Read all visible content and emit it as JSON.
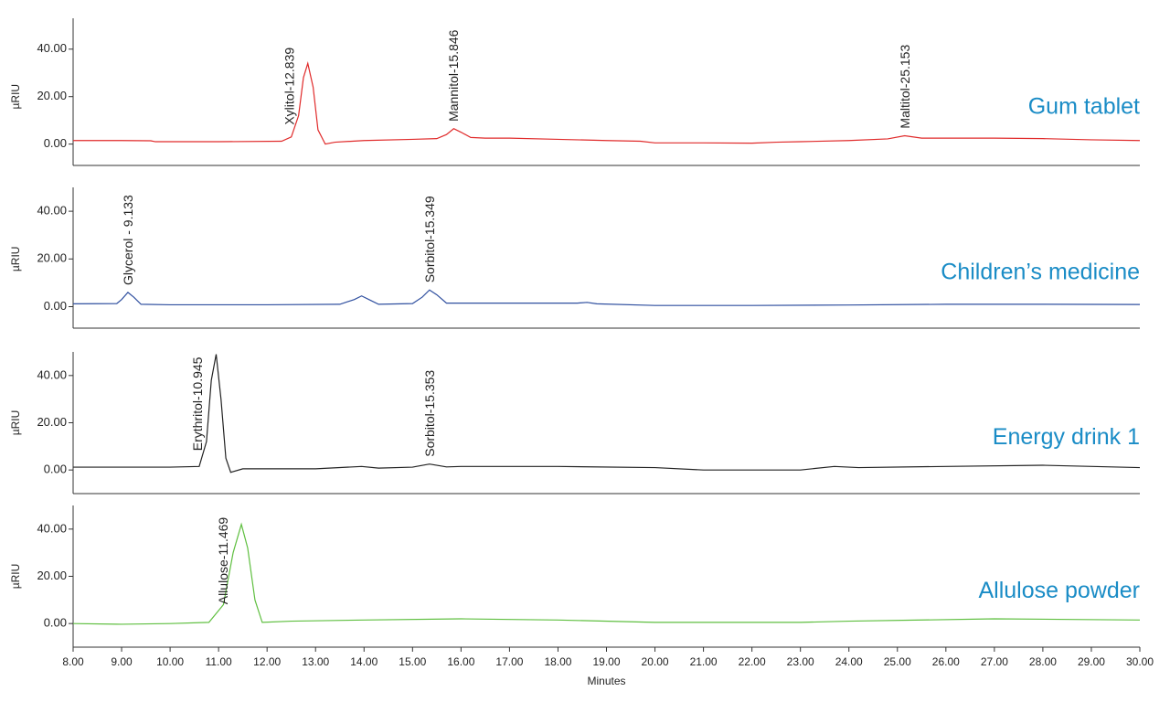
{
  "chart_data": [
    {
      "type": "line",
      "title": "Gum tablet",
      "ylabel": "µRIU",
      "color": "#e02a2a",
      "xlim": [
        8,
        30
      ],
      "ylim": [
        -9,
        53
      ],
      "yticks": [
        {
          "value": 0,
          "label": "0.00"
        },
        {
          "value": 20,
          "label": "20.00"
        },
        {
          "value": 40,
          "label": "40.00"
        }
      ],
      "x": [
        8,
        9,
        9.6,
        9.7,
        11,
        12.3,
        12.5,
        12.65,
        12.75,
        12.84,
        12.95,
        13.05,
        13.2,
        13.4,
        14,
        15,
        15.5,
        15.7,
        15.85,
        16,
        16.2,
        16.5,
        17,
        18,
        19,
        19.7,
        20,
        21,
        22,
        22.5,
        23,
        24,
        24.8,
        25.15,
        25.5,
        26,
        27,
        28,
        29,
        30
      ],
      "values": [
        1.5,
        1.5,
        1.4,
        1,
        1,
        1.2,
        3,
        12,
        28,
        34,
        24,
        6,
        0,
        0.8,
        1.5,
        2,
        2.3,
        4,
        6.5,
        5,
        2.8,
        2.5,
        2.5,
        2,
        1.5,
        1.2,
        0.5,
        0.5,
        0.4,
        0.8,
        1,
        1.5,
        2.2,
        3.5,
        2.5,
        2.5,
        2.5,
        2.3,
        1.8,
        1.5
      ],
      "annotations": [
        {
          "text": "Xylitol-12.839",
          "x": 12.839
        },
        {
          "text": "Mannitol-15.846",
          "x": 15.846
        },
        {
          "text": "Maltitol-25.153",
          "x": 25.153
        }
      ]
    },
    {
      "type": "line",
      "title": "Children’s medicine",
      "ylabel": "µRIU",
      "color": "#2f4f9f",
      "xlim": [
        8,
        30
      ],
      "ylim": [
        -9,
        50
      ],
      "yticks": [
        {
          "value": 0,
          "label": "0.00"
        },
        {
          "value": 20,
          "label": "20.00"
        },
        {
          "value": 40,
          "label": "40.00"
        }
      ],
      "x": [
        8,
        8.9,
        9.0,
        9.13,
        9.25,
        9.4,
        10,
        12,
        13.5,
        13.8,
        13.95,
        14.1,
        14.3,
        15,
        15.2,
        15.35,
        15.5,
        15.7,
        16,
        17,
        18.4,
        18.6,
        18.8,
        20,
        22,
        24,
        26,
        28,
        30
      ],
      "values": [
        1.2,
        1.3,
        3,
        6,
        4,
        1,
        0.8,
        0.8,
        1,
        3,
        4.5,
        3,
        1,
        1.3,
        4,
        7,
        5,
        1.5,
        1.5,
        1.5,
        1.5,
        1.8,
        1.2,
        0.5,
        0.5,
        0.7,
        1,
        1,
        0.9
      ],
      "annotations": [
        {
          "text": "Glycerol - 9.133",
          "x": 9.133
        },
        {
          "text": "Sorbitol-15.349",
          "x": 15.349
        }
      ]
    },
    {
      "type": "line",
      "title": "Energy drink 1",
      "ylabel": "µRIU",
      "color": "#222222",
      "xlim": [
        8,
        30
      ],
      "ylim": [
        -10,
        50
      ],
      "yticks": [
        {
          "value": 0,
          "label": "0.00"
        },
        {
          "value": 20,
          "label": "20.00"
        },
        {
          "value": 40,
          "label": "40.00"
        }
      ],
      "x": [
        8,
        10,
        10.6,
        10.75,
        10.85,
        10.95,
        11.05,
        11.15,
        11.25,
        11.5,
        13,
        13.95,
        14.3,
        15,
        15.35,
        15.7,
        16,
        18,
        20,
        21,
        23,
        23.7,
        24.2,
        26,
        28,
        30
      ],
      "values": [
        1.2,
        1.2,
        1.5,
        12,
        38,
        49,
        30,
        5,
        -1,
        0.5,
        0.5,
        1.5,
        0.8,
        1.2,
        2.5,
        1.3,
        1.5,
        1.5,
        1,
        0,
        0,
        1.5,
        1,
        1.5,
        2,
        1
      ],
      "annotations": [
        {
          "text": "Erythritol-10.945",
          "x": 10.945
        },
        {
          "text": "Sorbitol-15.353",
          "x": 15.353
        }
      ]
    },
    {
      "type": "line",
      "title": "Allulose powder",
      "ylabel": "µRIU",
      "color": "#5fbf40",
      "xlim": [
        8,
        30
      ],
      "ylim": [
        -10,
        50
      ],
      "xlabel": "Minutes",
      "yticks": [
        {
          "value": 0,
          "label": "0.00"
        },
        {
          "value": 20,
          "label": "20.00"
        },
        {
          "value": 40,
          "label": "40.00"
        }
      ],
      "xticks": [
        {
          "value": 8,
          "label": "8.00"
        },
        {
          "value": 9,
          "label": "9.00"
        },
        {
          "value": 10,
          "label": "10.00"
        },
        {
          "value": 11,
          "label": "11.00"
        },
        {
          "value": 12,
          "label": "12.00"
        },
        {
          "value": 13,
          "label": "13.00"
        },
        {
          "value": 14,
          "label": "14.00"
        },
        {
          "value": 15,
          "label": "15.00"
        },
        {
          "value": 16,
          "label": "16.00"
        },
        {
          "value": 17,
          "label": "17.00"
        },
        {
          "value": 18,
          "label": "18.00"
        },
        {
          "value": 19,
          "label": "19.00"
        },
        {
          "value": 20,
          "label": "20.00"
        },
        {
          "value": 21,
          "label": "21.00"
        },
        {
          "value": 22,
          "label": "22.00"
        },
        {
          "value": 23,
          "label": "23.00"
        },
        {
          "value": 24,
          "label": "24.00"
        },
        {
          "value": 25,
          "label": "25.00"
        },
        {
          "value": 26,
          "label": "26.00"
        },
        {
          "value": 27,
          "label": "27.00"
        },
        {
          "value": 28,
          "label": "28.00"
        },
        {
          "value": 29,
          "label": "29.00"
        },
        {
          "value": 30,
          "label": "30.00"
        }
      ],
      "x": [
        8,
        9,
        10,
        10.8,
        11.1,
        11.3,
        11.47,
        11.6,
        11.75,
        11.9,
        12.5,
        14,
        16,
        18,
        20,
        23,
        24,
        27,
        30
      ],
      "values": [
        0,
        -0.3,
        0,
        0.5,
        8,
        30,
        42,
        32,
        10,
        0.5,
        1,
        1.5,
        2,
        1.5,
        0.5,
        0.5,
        1,
        2,
        1.5
      ],
      "annotations": [
        {
          "text": "Allulose-11.469",
          "x": 11.469
        }
      ]
    }
  ]
}
